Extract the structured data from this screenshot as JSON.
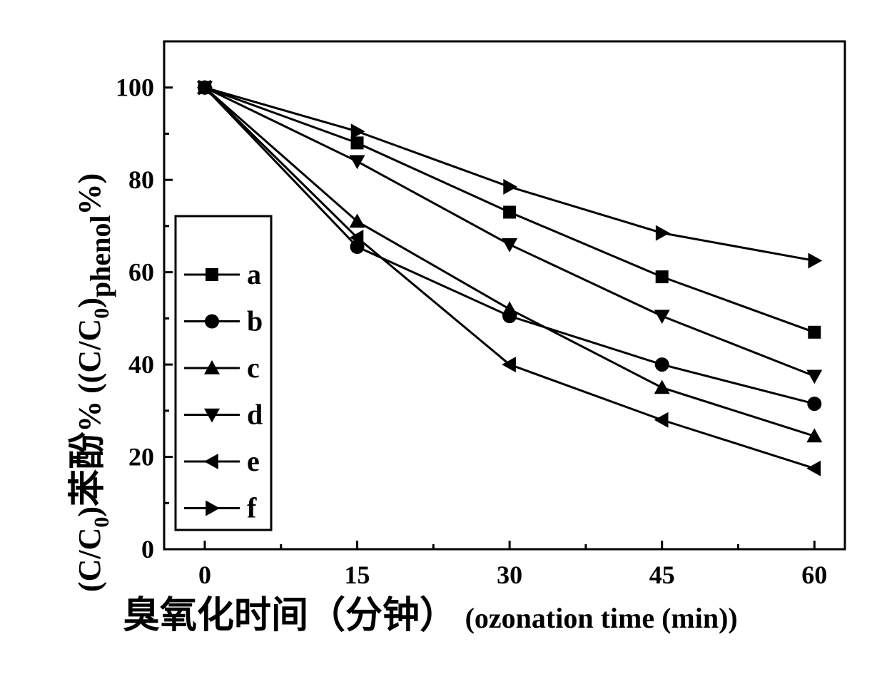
{
  "chart_data": {
    "type": "line",
    "x": [
      0,
      15,
      30,
      45,
      60
    ],
    "xlim": [
      -4,
      63
    ],
    "ylim": [
      0,
      110
    ],
    "x_ticks": [
      "0",
      "15",
      "30",
      "45",
      "60"
    ],
    "y_ticks": [
      "0",
      "20",
      "40",
      "60",
      "80",
      "100"
    ],
    "xlabel_cn": "臭氧化时间（分钟）",
    "xlabel_en": "(ozonation time (min))",
    "ylabel": "(C/C0)苯酚% ((C/C0)phenol%)",
    "ylabel_parts": {
      "open": "(C/C",
      "sub0": "0",
      "close": ")",
      "cn": "苯酚",
      "pct": "%",
      "open2": "((C/C",
      "sub2": "0",
      "close2": ")",
      "sub_phenol": "phenol",
      "pct2": "%)"
    },
    "legend_position": "left",
    "grid": false,
    "series": [
      {
        "name": "a",
        "marker": "square",
        "values": [
          100,
          88,
          73,
          59,
          47
        ]
      },
      {
        "name": "b",
        "marker": "circle",
        "values": [
          100,
          65.5,
          50.5,
          40,
          31.5
        ]
      },
      {
        "name": "c",
        "marker": "triangle-up",
        "values": [
          100,
          71,
          52,
          35,
          24.5
        ]
      },
      {
        "name": "d",
        "marker": "triangle-down",
        "values": [
          100,
          84,
          66,
          50.5,
          37.5
        ]
      },
      {
        "name": "e",
        "marker": "triangle-left",
        "values": [
          100,
          67.5,
          40,
          28,
          17.5
        ]
      },
      {
        "name": "f",
        "marker": "triangle-right",
        "values": [
          100,
          90.5,
          78.5,
          68.5,
          62.5
        ]
      }
    ]
  }
}
